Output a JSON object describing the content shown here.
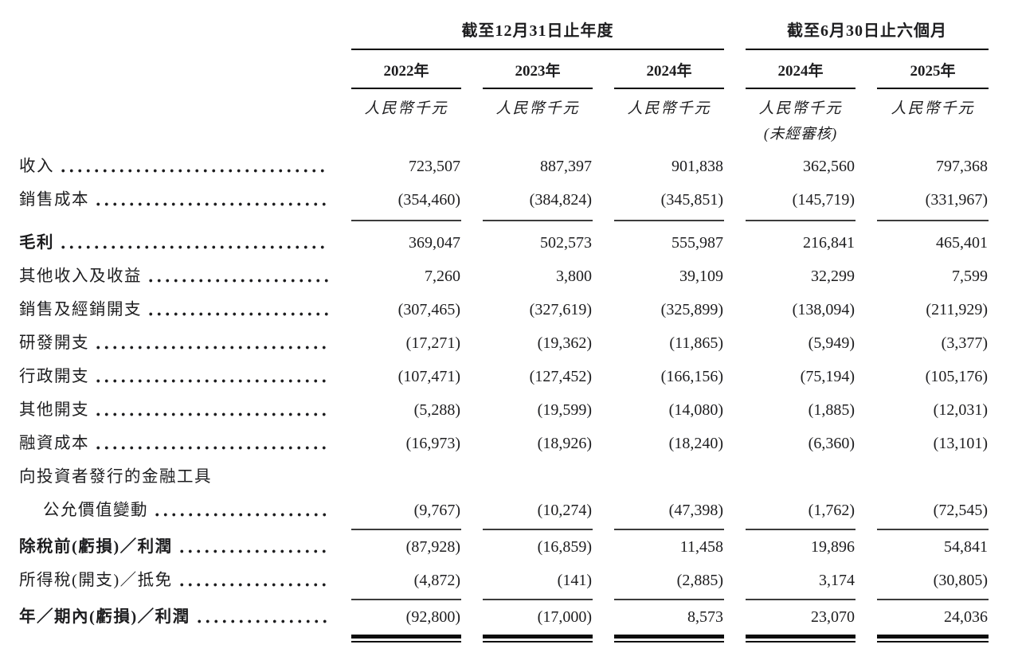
{
  "table": {
    "groups": [
      {
        "title": "截至12月31日止年度"
      },
      {
        "title": "截至6月30日止六個月"
      }
    ],
    "columns": [
      {
        "year": "2022年",
        "unit": "人民幣千元",
        "note": ""
      },
      {
        "year": "2023年",
        "unit": "人民幣千元",
        "note": ""
      },
      {
        "year": "2024年",
        "unit": "人民幣千元",
        "note": ""
      },
      {
        "year": "2024年",
        "unit": "人民幣千元",
        "note": "(未經審核)"
      },
      {
        "year": "2025年",
        "unit": "人民幣千元",
        "note": ""
      }
    ],
    "rows": [
      {
        "label": "收入",
        "dots": true,
        "bold": false,
        "indent": false,
        "values": [
          "723,507",
          "887,397",
          "901,838",
          "362,560",
          "797,368"
        ],
        "rule_after": "none"
      },
      {
        "label": "銷售成本",
        "dots": true,
        "bold": false,
        "indent": false,
        "values": [
          "(354,460)",
          "(384,824)",
          "(345,851)",
          "(145,719)",
          "(331,967)"
        ],
        "rule_after": "single-wide"
      },
      {
        "label": "毛利",
        "dots": true,
        "bold": true,
        "indent": false,
        "values": [
          "369,047",
          "502,573",
          "555,987",
          "216,841",
          "465,401"
        ],
        "rule_after": "none"
      },
      {
        "label": "其他收入及收益",
        "dots": true,
        "bold": false,
        "indent": false,
        "values": [
          "7,260",
          "3,800",
          "39,109",
          "32,299",
          "7,599"
        ],
        "rule_after": "none"
      },
      {
        "label": "銷售及經銷開支",
        "dots": true,
        "bold": false,
        "indent": false,
        "values": [
          "(307,465)",
          "(327,619)",
          "(325,899)",
          "(138,094)",
          "(211,929)"
        ],
        "rule_after": "none"
      },
      {
        "label": "研發開支",
        "dots": true,
        "bold": false,
        "indent": false,
        "values": [
          "(17,271)",
          "(19,362)",
          "(11,865)",
          "(5,949)",
          "(3,377)"
        ],
        "rule_after": "none"
      },
      {
        "label": "行政開支",
        "dots": true,
        "bold": false,
        "indent": false,
        "values": [
          "(107,471)",
          "(127,452)",
          "(166,156)",
          "(75,194)",
          "(105,176)"
        ],
        "rule_after": "none"
      },
      {
        "label": "其他開支",
        "dots": true,
        "bold": false,
        "indent": false,
        "values": [
          "(5,288)",
          "(19,599)",
          "(14,080)",
          "(1,885)",
          "(12,031)"
        ],
        "rule_after": "none"
      },
      {
        "label": "融資成本",
        "dots": true,
        "bold": false,
        "indent": false,
        "values": [
          "(16,973)",
          "(18,926)",
          "(18,240)",
          "(6,360)",
          "(13,101)"
        ],
        "rule_after": "none"
      },
      {
        "label": "向投資者發行的金融工具",
        "dots": false,
        "bold": false,
        "indent": false,
        "values": [],
        "rule_after": "none"
      },
      {
        "label": "公允價值變動",
        "dots": true,
        "bold": false,
        "indent": true,
        "values": [
          "(9,767)",
          "(10,274)",
          "(47,398)",
          "(1,762)",
          "(72,545)"
        ],
        "rule_after": "single"
      },
      {
        "label": "除稅前(虧損)／利潤",
        "dots": true,
        "bold": true,
        "indent": false,
        "values": [
          "(87,928)",
          "(16,859)",
          "11,458",
          "19,896",
          "54,841"
        ],
        "rule_after": "none"
      },
      {
        "label": "所得稅(開支)／抵免",
        "dots": true,
        "bold": false,
        "indent": false,
        "values": [
          "(4,872)",
          "(141)",
          "(2,885)",
          "3,174",
          "(30,805)"
        ],
        "rule_after": "single"
      },
      {
        "label": "年／期內(虧損)／利潤",
        "dots": true,
        "bold": true,
        "indent": false,
        "values": [
          "(92,800)",
          "(17,000)",
          "8,573",
          "23,070",
          "24,036"
        ],
        "rule_after": "double"
      }
    ]
  }
}
